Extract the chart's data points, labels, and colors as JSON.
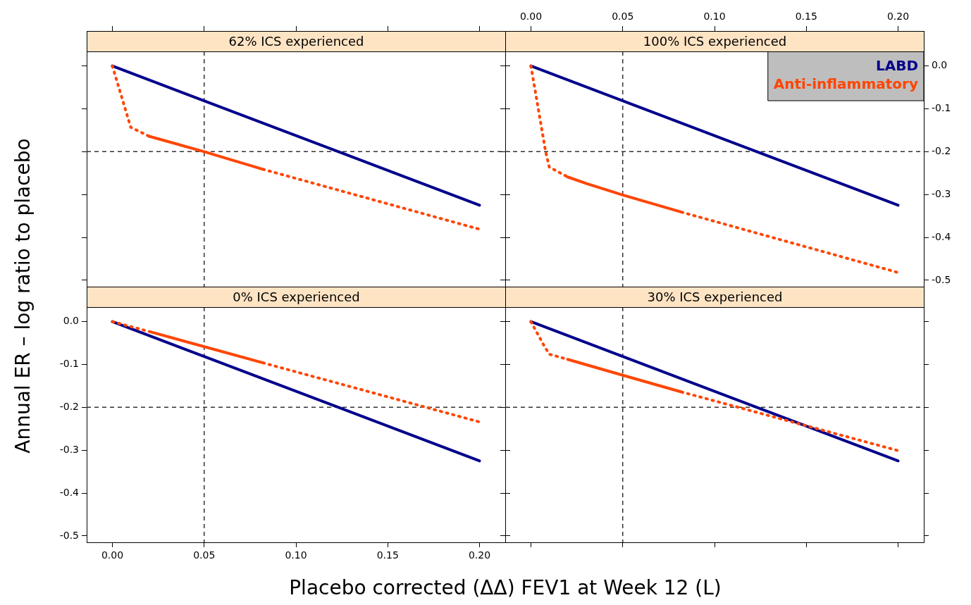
{
  "chart_data": [
    {
      "type": "line",
      "title": "62% ICS experienced",
      "xlim": [
        -0.014,
        0.214
      ],
      "ylim": [
        -0.515,
        0.034
      ],
      "xticks": [
        0,
        0.05,
        0.1,
        0.15,
        0.2
      ],
      "yticks": [
        0,
        -0.1,
        -0.2,
        -0.3,
        -0.4,
        -0.5
      ],
      "tick_labels": false,
      "ref_lines": [
        {
          "axis": "x",
          "value": 0.05,
          "color": "#333333",
          "line_style": "dashed"
        },
        {
          "axis": "y",
          "value": -0.2,
          "color": "#333333",
          "line_style": "dashed"
        }
      ],
      "series": [
        {
          "color": "#00008b",
          "line_style": "solid",
          "x": [
            0,
            0.2
          ],
          "values": [
            0,
            -0.325
          ]
        },
        {
          "color": "#ff4500",
          "line_style": "dotted",
          "x": [
            0,
            0.01,
            0.02
          ],
          "values": [
            0,
            -0.143,
            -0.164
          ]
        },
        {
          "color": "#ff4500",
          "line_style": "solid",
          "x": [
            0.02,
            0.05,
            0.082
          ],
          "values": [
            -0.164,
            -0.2,
            -0.241
          ]
        },
        {
          "color": "#ff4500",
          "line_style": "dotted",
          "x": [
            0.082,
            0.2
          ],
          "values": [
            -0.241,
            -0.381
          ]
        }
      ]
    },
    {
      "type": "line",
      "title": "100% ICS experienced",
      "xlim": [
        -0.014,
        0.214
      ],
      "xticks": [
        {
          "value": 0,
          "label": "0.00"
        },
        {
          "value": 0.05,
          "label": "0.05"
        },
        {
          "value": 0.1,
          "label": "0.10"
        },
        {
          "value": 0.15,
          "label": "0.15"
        },
        {
          "value": 0.2,
          "label": "0.20"
        }
      ],
      "ylim": [
        -0.515,
        0.034
      ],
      "yticks": [
        {
          "value": 0,
          "label": "0.0"
        },
        {
          "value": -0.1,
          "label": "-0.1"
        },
        {
          "value": -0.2,
          "label": "-0.2"
        },
        {
          "value": -0.3,
          "label": "-0.3"
        },
        {
          "value": -0.4,
          "label": "-0.4"
        },
        {
          "value": -0.5,
          "label": "-0.5"
        }
      ],
      "legend": "top right",
      "ref_lines": [
        {
          "axis": "x",
          "value": 0.05,
          "color": "#333333",
          "line_style": "dashed"
        },
        {
          "axis": "y",
          "value": -0.2,
          "color": "#333333",
          "line_style": "dashed"
        }
      ],
      "series": [
        {
          "name": "LABD",
          "color": "#00008b",
          "line_style": "solid",
          "x": [
            0,
            0.2
          ],
          "values": [
            0,
            -0.325
          ]
        },
        {
          "name": "Anti-inflammatory",
          "color": "#ff4500",
          "line_style": "dotted",
          "x": [
            0,
            0.008,
            0.01,
            0.02
          ],
          "values": [
            0,
            -0.2,
            -0.236,
            -0.259
          ]
        },
        {
          "color": "#ff4500",
          "line_style": "solid",
          "x": [
            0.02,
            0.03,
            0.05,
            0.082
          ],
          "values": [
            -0.259,
            -0.274,
            -0.301,
            -0.341
          ]
        },
        {
          "color": "#ff4500",
          "line_style": "dotted",
          "x": [
            0.082,
            0.2
          ],
          "values": [
            -0.341,
            -0.482
          ]
        }
      ]
    },
    {
      "type": "line",
      "title": "0% ICS experienced",
      "xlabel": "Placebo corrected (ΔΔ) FEV1 at Week 12 (L)",
      "ylabel": "Annual ER – log ratio to placebo",
      "xlim": [
        -0.014,
        0.214
      ],
      "ylim": [
        -0.515,
        0.034
      ],
      "xticks": [
        {
          "value": 0,
          "label": "0.00"
        },
        {
          "value": 0.05,
          "label": "0.05"
        },
        {
          "value": 0.1,
          "label": "0.10"
        },
        {
          "value": 0.15,
          "label": "0.15"
        },
        {
          "value": 0.2,
          "label": "0.20"
        }
      ],
      "yticks": [
        {
          "value": 0,
          "label": "0.0"
        },
        {
          "value": -0.1,
          "label": "-0.1"
        },
        {
          "value": -0.2,
          "label": "-0.2"
        },
        {
          "value": -0.3,
          "label": "-0.3"
        },
        {
          "value": -0.4,
          "label": "-0.4"
        },
        {
          "value": -0.5,
          "label": "-0.5"
        }
      ],
      "ref_lines": [
        {
          "axis": "x",
          "value": 0.05,
          "color": "#333333",
          "line_style": "dashed"
        },
        {
          "axis": "y",
          "value": -0.2,
          "color": "#333333",
          "line_style": "dashed"
        }
      ],
      "series": [
        {
          "color": "#00008b",
          "line_style": "solid",
          "x": [
            0,
            0.2
          ],
          "values": [
            0,
            -0.325
          ]
        },
        {
          "color": "#ff4500",
          "line_style": "dotted",
          "x": [
            0,
            0.02
          ],
          "values": [
            0,
            -0.023
          ]
        },
        {
          "color": "#ff4500",
          "line_style": "solid",
          "x": [
            0.02,
            0.082
          ],
          "values": [
            -0.023,
            -0.096
          ]
        },
        {
          "color": "#ff4500",
          "line_style": "dotted",
          "x": [
            0.082,
            0.2
          ],
          "values": [
            -0.096,
            -0.234
          ]
        }
      ]
    },
    {
      "type": "line",
      "title": "30% ICS experienced",
      "xlim": [
        -0.014,
        0.214
      ],
      "ylim": [
        -0.515,
        0.034
      ],
      "xticks": [
        0,
        0.05,
        0.1,
        0.15,
        0.2
      ],
      "yticks": [
        0,
        -0.1,
        -0.2,
        -0.3,
        -0.4,
        -0.5
      ],
      "tick_labels": false,
      "ref_lines": [
        {
          "axis": "x",
          "value": 0.05,
          "color": "#333333",
          "line_style": "dashed"
        },
        {
          "axis": "y",
          "value": -0.2,
          "color": "#333333",
          "line_style": "dashed"
        }
      ],
      "series": [
        {
          "color": "#00008b",
          "line_style": "solid",
          "x": [
            0,
            0.2
          ],
          "values": [
            0,
            -0.325
          ]
        },
        {
          "color": "#ff4500",
          "line_style": "dotted",
          "x": [
            0,
            0.007,
            0.01,
            0.02
          ],
          "values": [
            0,
            -0.055,
            -0.076,
            -0.088
          ]
        },
        {
          "color": "#ff4500",
          "line_style": "solid",
          "x": [
            0.02,
            0.05,
            0.082
          ],
          "values": [
            -0.088,
            -0.125,
            -0.164
          ]
        },
        {
          "color": "#ff4500",
          "line_style": "dotted",
          "x": [
            0.082,
            0.2
          ],
          "values": [
            -0.164,
            -0.301
          ]
        }
      ]
    }
  ]
}
